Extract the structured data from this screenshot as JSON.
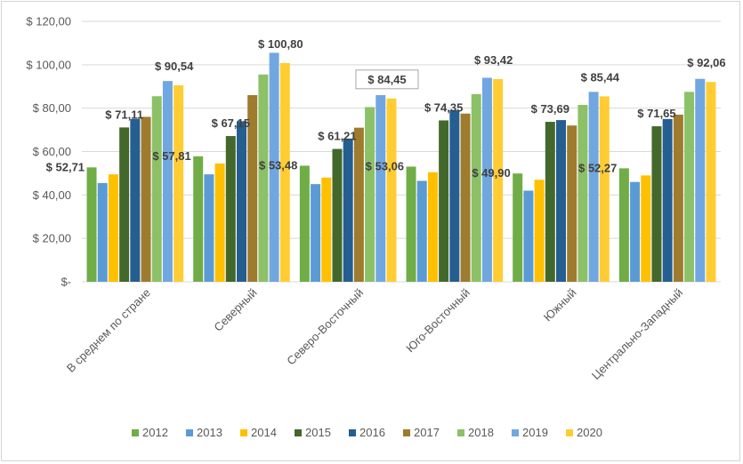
{
  "chart_data": {
    "type": "bar",
    "title": "",
    "xlabel": "",
    "ylabel": "",
    "ylim": [
      0,
      120
    ],
    "yticks": [
      {
        "value": 0,
        "label": "$-"
      },
      {
        "value": 20,
        "label": "$ 20,00"
      },
      {
        "value": 40,
        "label": "$ 40,00"
      },
      {
        "value": 60,
        "label": "$ 60,00"
      },
      {
        "value": 80,
        "label": "$ 80,00"
      },
      {
        "value": 100,
        "label": "$ 100,00"
      },
      {
        "value": 120,
        "label": "$ 120,00"
      }
    ],
    "grid": true,
    "legend_position": "bottom",
    "categories": [
      "В среднем по стране",
      "Северный",
      "Северо-Восточный",
      "Юго-Восточный",
      "Южный",
      "Центрально-Западный"
    ],
    "series": [
      {
        "name": "2012",
        "color": "#70ad47",
        "values": [
          52.71,
          57.81,
          53.48,
          53.06,
          49.9,
          52.27
        ]
      },
      {
        "name": "2013",
        "color": "#5b9bd5",
        "values": [
          45.5,
          49.5,
          45.0,
          46.5,
          42.0,
          46.0
        ]
      },
      {
        "name": "2014",
        "color": "#ffc000",
        "values": [
          49.5,
          54.5,
          48.0,
          50.5,
          47.0,
          49.0
        ]
      },
      {
        "name": "2015",
        "color": "#43682b",
        "values": [
          71.11,
          67.15,
          61.21,
          74.35,
          73.69,
          71.65
        ]
      },
      {
        "name": "2016",
        "color": "#255e91",
        "values": [
          75.0,
          74.0,
          66.0,
          79.0,
          74.5,
          75.0
        ]
      },
      {
        "name": "2017",
        "color": "#9e7b2d",
        "values": [
          76.0,
          86.0,
          71.0,
          77.5,
          72.0,
          77.0
        ]
      },
      {
        "name": "2018",
        "color": "#8cc168",
        "values": [
          85.5,
          95.5,
          80.5,
          86.5,
          81.5,
          87.5
        ]
      },
      {
        "name": "2019",
        "color": "#71a7e0",
        "values": [
          92.5,
          105.5,
          86.0,
          94.0,
          87.5,
          93.5
        ]
      },
      {
        "name": "2020",
        "color": "#ffcd33",
        "values": [
          90.54,
          100.8,
          84.45,
          93.42,
          85.44,
          92.06
        ]
      }
    ],
    "data_labels": [
      {
        "category": 0,
        "series": "2012",
        "text": "$ 52,71"
      },
      {
        "category": 0,
        "series": "2015",
        "text": "$ 71,11"
      },
      {
        "category": 0,
        "series": "2020",
        "text": "$ 90,54"
      },
      {
        "category": 1,
        "series": "2012",
        "text": "$ 57,81"
      },
      {
        "category": 1,
        "series": "2015",
        "text": "$ 67,15"
      },
      {
        "category": 1,
        "series": "2020",
        "text": "$ 100,80"
      },
      {
        "category": 2,
        "series": "2012",
        "text": "$ 53,48"
      },
      {
        "category": 2,
        "series": "2015",
        "text": "$ 61,21"
      },
      {
        "category": 2,
        "series": "2020",
        "text": "$ 84,45",
        "boxed": true
      },
      {
        "category": 3,
        "series": "2012",
        "text": "$ 53,06"
      },
      {
        "category": 3,
        "series": "2015",
        "text": "$ 74,35"
      },
      {
        "category": 3,
        "series": "2020",
        "text": "$ 93,42"
      },
      {
        "category": 4,
        "series": "2012",
        "text": "$ 49,90"
      },
      {
        "category": 4,
        "series": "2015",
        "text": "$ 73,69"
      },
      {
        "category": 4,
        "series": "2020",
        "text": "$ 85,44"
      },
      {
        "category": 5,
        "series": "2012",
        "text": "$ 52,27"
      },
      {
        "category": 5,
        "series": "2015",
        "text": "$ 71,65"
      },
      {
        "category": 5,
        "series": "2020",
        "text": "$ 92,06"
      }
    ]
  }
}
